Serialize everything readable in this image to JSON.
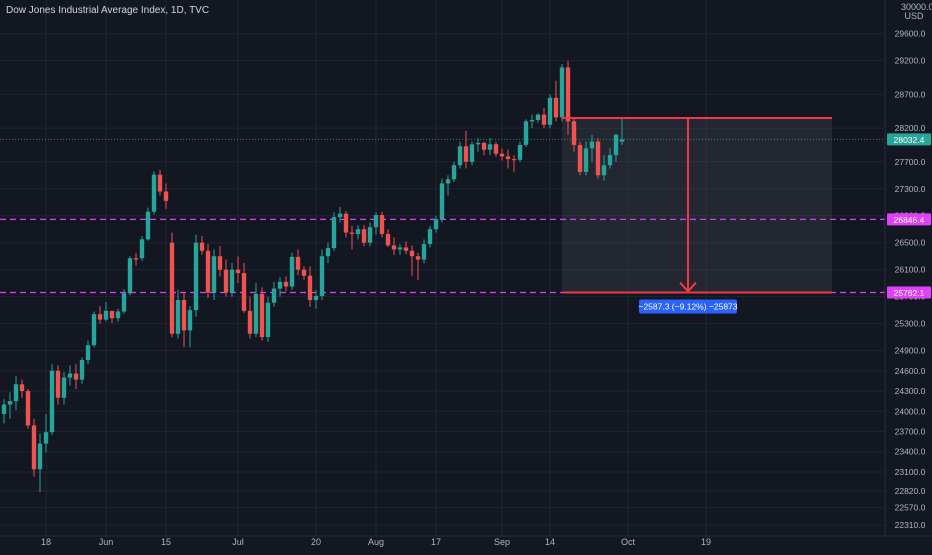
{
  "header": {
    "title": "Dow Jones Industrial Average Index, 1D, TVC",
    "currency_top": "30000.0",
    "currency": "USD"
  },
  "colors": {
    "background": "#131722",
    "up": "#26a69a",
    "down": "#ef5350",
    "grid": "#1f2430",
    "level_line": "#e040fb",
    "measure_line": "#f23645",
    "measure_box": "#2a2e39",
    "measure_label_bg": "#2962ff"
  },
  "price_badges": [
    {
      "name": "last-price-badge",
      "label": "28032.4",
      "value": 28032.4,
      "color": "#26a69a",
      "line": "dotted"
    },
    {
      "name": "level-upper-badge",
      "label": "26846.4",
      "value": 26846.4,
      "color": "#e040fb",
      "line": "dashed"
    },
    {
      "name": "level-lower-badge",
      "label": "25762.1",
      "value": 25762.1,
      "color": "#e040fb",
      "line": "dashed"
    }
  ],
  "measure": {
    "label": "−2587.3 (−9.12%) −25873",
    "top_price": 28349.5,
    "bottom_price": 25762.1,
    "start_bar": 93,
    "end_bar": 137,
    "arrow_bar": 114
  },
  "chart_data": {
    "type": "candlestick",
    "title": "Dow Jones Industrial Average Index, 1D, TVC",
    "ylim": [
      22150,
      30100
    ],
    "y_ticks": [
      "22310.0",
      "22570.0",
      "22820.0",
      "23100.0",
      "23400.0",
      "23700.0",
      "24000.0",
      "24300.0",
      "24600.0",
      "24900.0",
      "25300.0",
      "25700.0",
      "26100.0",
      "26500.0",
      "26900.0",
      "27300.0",
      "27700.0",
      "28200.0",
      "28700.0",
      "29200.0",
      "29600.0"
    ],
    "x_ticks": [
      {
        "label": "18",
        "bar": 7
      },
      {
        "label": "Jun",
        "bar": 17
      },
      {
        "label": "15",
        "bar": 27
      },
      {
        "label": "Jul",
        "bar": 39
      },
      {
        "label": "20",
        "bar": 52
      },
      {
        "label": "Aug",
        "bar": 62
      },
      {
        "label": "17",
        "bar": 72
      },
      {
        "label": "Sep",
        "bar": 83
      },
      {
        "label": "14",
        "bar": 91
      },
      {
        "label": "Oct",
        "bar": 104
      },
      {
        "label": "19",
        "bar": 117
      }
    ],
    "candles": [
      {
        "o": 23960,
        "h": 24180,
        "l": 23820,
        "c": 24100
      },
      {
        "o": 24100,
        "h": 24280,
        "l": 23890,
        "c": 24150
      },
      {
        "o": 24150,
        "h": 24520,
        "l": 24020,
        "c": 24400
      },
      {
        "o": 24400,
        "h": 24470,
        "l": 24200,
        "c": 24300
      },
      {
        "o": 24300,
        "h": 24330,
        "l": 23740,
        "c": 23790
      },
      {
        "o": 23790,
        "h": 23890,
        "l": 23030,
        "c": 23140
      },
      {
        "o": 23140,
        "h": 23670,
        "l": 22800,
        "c": 23520
      },
      {
        "o": 23520,
        "h": 23960,
        "l": 23390,
        "c": 23690
      },
      {
        "o": 23690,
        "h": 24700,
        "l": 23650,
        "c": 24600
      },
      {
        "o": 24600,
        "h": 24680,
        "l": 24100,
        "c": 24200
      },
      {
        "o": 24200,
        "h": 24580,
        "l": 24100,
        "c": 24500
      },
      {
        "o": 24500,
        "h": 24680,
        "l": 24380,
        "c": 24560
      },
      {
        "o": 24560,
        "h": 24700,
        "l": 24330,
        "c": 24470
      },
      {
        "o": 24470,
        "h": 24800,
        "l": 24410,
        "c": 24760
      },
      {
        "o": 24760,
        "h": 25050,
        "l": 24700,
        "c": 24980
      },
      {
        "o": 24980,
        "h": 25480,
        "l": 24950,
        "c": 25440
      },
      {
        "o": 25440,
        "h": 25560,
        "l": 25300,
        "c": 25360
      },
      {
        "o": 25360,
        "h": 25620,
        "l": 25330,
        "c": 25490
      },
      {
        "o": 25490,
        "h": 25470,
        "l": 25310,
        "c": 25380
      },
      {
        "o": 25380,
        "h": 25520,
        "l": 25330,
        "c": 25480
      },
      {
        "o": 25480,
        "h": 25810,
        "l": 25450,
        "c": 25750
      },
      {
        "o": 25750,
        "h": 26300,
        "l": 25720,
        "c": 26270
      },
      {
        "o": 26270,
        "h": 26350,
        "l": 26160,
        "c": 26250
      },
      {
        "o": 26270,
        "h": 26600,
        "l": 26230,
        "c": 26550
      },
      {
        "o": 26550,
        "h": 27020,
        "l": 26530,
        "c": 26960
      },
      {
        "o": 26960,
        "h": 27560,
        "l": 26920,
        "c": 27510
      },
      {
        "o": 27510,
        "h": 27580,
        "l": 27200,
        "c": 27260
      },
      {
        "o": 27260,
        "h": 27380,
        "l": 27000,
        "c": 27120
      },
      {
        "o": 26500,
        "h": 26650,
        "l": 25100,
        "c": 25150
      },
      {
        "o": 25150,
        "h": 25800,
        "l": 25080,
        "c": 25650
      },
      {
        "o": 25650,
        "h": 25760,
        "l": 24950,
        "c": 25200
      },
      {
        "o": 25200,
        "h": 25560,
        "l": 24950,
        "c": 25500
      },
      {
        "o": 25500,
        "h": 26620,
        "l": 25400,
        "c": 26500
      },
      {
        "o": 26500,
        "h": 26600,
        "l": 26320,
        "c": 26380
      },
      {
        "o": 26380,
        "h": 26480,
        "l": 25680,
        "c": 25760
      },
      {
        "o": 25760,
        "h": 26400,
        "l": 25650,
        "c": 26300
      },
      {
        "o": 26300,
        "h": 26450,
        "l": 26000,
        "c": 26100
      },
      {
        "o": 26100,
        "h": 26250,
        "l": 25700,
        "c": 25760
      },
      {
        "o": 25760,
        "h": 26200,
        "l": 25700,
        "c": 26100
      },
      {
        "o": 26100,
        "h": 26300,
        "l": 25900,
        "c": 26050
      },
      {
        "o": 26050,
        "h": 26200,
        "l": 25460,
        "c": 25490
      },
      {
        "o": 25490,
        "h": 25700,
        "l": 25080,
        "c": 25150
      },
      {
        "o": 25150,
        "h": 25900,
        "l": 25100,
        "c": 25740
      },
      {
        "o": 25740,
        "h": 25840,
        "l": 25050,
        "c": 25100
      },
      {
        "o": 25100,
        "h": 25700,
        "l": 25030,
        "c": 25610
      },
      {
        "o": 25610,
        "h": 25920,
        "l": 25550,
        "c": 25820
      },
      {
        "o": 25820,
        "h": 25990,
        "l": 25700,
        "c": 25920
      },
      {
        "o": 25920,
        "h": 26000,
        "l": 25780,
        "c": 25850
      },
      {
        "o": 25850,
        "h": 26350,
        "l": 25800,
        "c": 26290
      },
      {
        "o": 26290,
        "h": 26400,
        "l": 26020,
        "c": 26100
      },
      {
        "o": 26100,
        "h": 26150,
        "l": 25950,
        "c": 26010
      },
      {
        "o": 26010,
        "h": 26150,
        "l": 25550,
        "c": 25650
      },
      {
        "o": 25650,
        "h": 25800,
        "l": 25520,
        "c": 25710
      },
      {
        "o": 25710,
        "h": 26400,
        "l": 25650,
        "c": 26300
      },
      {
        "o": 26300,
        "h": 26500,
        "l": 26200,
        "c": 26420
      },
      {
        "o": 26420,
        "h": 26950,
        "l": 26380,
        "c": 26880
      },
      {
        "o": 26880,
        "h": 27030,
        "l": 26800,
        "c": 26930
      },
      {
        "o": 26930,
        "h": 26970,
        "l": 26580,
        "c": 26650
      },
      {
        "o": 26650,
        "h": 26750,
        "l": 26400,
        "c": 26630
      },
      {
        "o": 26630,
        "h": 26760,
        "l": 26550,
        "c": 26700
      },
      {
        "o": 26700,
        "h": 26760,
        "l": 26450,
        "c": 26500
      },
      {
        "o": 26500,
        "h": 26800,
        "l": 26450,
        "c": 26730
      },
      {
        "o": 26730,
        "h": 26950,
        "l": 26620,
        "c": 26910
      },
      {
        "o": 26910,
        "h": 26960,
        "l": 26580,
        "c": 26630
      },
      {
        "o": 26630,
        "h": 26700,
        "l": 26440,
        "c": 26460
      },
      {
        "o": 26460,
        "h": 26580,
        "l": 26320,
        "c": 26400
      },
      {
        "o": 26400,
        "h": 26480,
        "l": 26320,
        "c": 26430
      },
      {
        "o": 26430,
        "h": 26520,
        "l": 26330,
        "c": 26380
      },
      {
        "o": 26380,
        "h": 26460,
        "l": 26010,
        "c": 26300
      },
      {
        "o": 26300,
        "h": 26350,
        "l": 25950,
        "c": 26250
      },
      {
        "o": 26250,
        "h": 26550,
        "l": 26200,
        "c": 26480
      },
      {
        "o": 26480,
        "h": 26750,
        "l": 26430,
        "c": 26700
      },
      {
        "o": 26700,
        "h": 26900,
        "l": 26650,
        "c": 26850
      },
      {
        "o": 26850,
        "h": 27450,
        "l": 26800,
        "c": 27380
      },
      {
        "o": 27380,
        "h": 27500,
        "l": 27200,
        "c": 27440
      },
      {
        "o": 27440,
        "h": 27700,
        "l": 27400,
        "c": 27650
      },
      {
        "o": 27650,
        "h": 28000,
        "l": 27600,
        "c": 27930
      },
      {
        "o": 27930,
        "h": 28160,
        "l": 27600,
        "c": 27700
      },
      {
        "o": 27700,
        "h": 28000,
        "l": 27650,
        "c": 27960
      },
      {
        "o": 27960,
        "h": 28050,
        "l": 27850,
        "c": 27980
      },
      {
        "o": 27980,
        "h": 28000,
        "l": 27800,
        "c": 27880
      },
      {
        "o": 27880,
        "h": 28050,
        "l": 27800,
        "c": 27960
      },
      {
        "o": 27960,
        "h": 28000,
        "l": 27780,
        "c": 27820
      },
      {
        "o": 27820,
        "h": 27900,
        "l": 27720,
        "c": 27780
      },
      {
        "o": 27780,
        "h": 27880,
        "l": 27600,
        "c": 27740
      },
      {
        "o": 27740,
        "h": 27800,
        "l": 27550,
        "c": 27730
      },
      {
        "o": 27730,
        "h": 28000,
        "l": 27700,
        "c": 27950
      },
      {
        "o": 27950,
        "h": 28330,
        "l": 27920,
        "c": 28300
      },
      {
        "o": 28300,
        "h": 28400,
        "l": 28200,
        "c": 28320
      },
      {
        "o": 28320,
        "h": 28420,
        "l": 28280,
        "c": 28400
      },
      {
        "o": 28400,
        "h": 28500,
        "l": 28200,
        "c": 28250
      },
      {
        "o": 28250,
        "h": 28700,
        "l": 28200,
        "c": 28650
      },
      {
        "o": 28650,
        "h": 28900,
        "l": 28300,
        "c": 28360
      },
      {
        "o": 28360,
        "h": 29150,
        "l": 28300,
        "c": 29100
      },
      {
        "o": 29100,
        "h": 29200,
        "l": 28100,
        "c": 28300
      },
      {
        "o": 28300,
        "h": 28350,
        "l": 27850,
        "c": 27950
      },
      {
        "o": 27950,
        "h": 28000,
        "l": 27500,
        "c": 27550
      },
      {
        "o": 27550,
        "h": 28000,
        "l": 27500,
        "c": 27900
      },
      {
        "o": 27900,
        "h": 28100,
        "l": 27700,
        "c": 28000
      },
      {
        "o": 28000,
        "h": 28050,
        "l": 27450,
        "c": 27500
      },
      {
        "o": 27500,
        "h": 27800,
        "l": 27420,
        "c": 27650
      },
      {
        "o": 27650,
        "h": 27900,
        "l": 27600,
        "c": 27800
      },
      {
        "o": 27800,
        "h": 28120,
        "l": 27700,
        "c": 28100
      },
      {
        "o": 28000,
        "h": 28360,
        "l": 27950,
        "c": 28032.4
      }
    ]
  }
}
